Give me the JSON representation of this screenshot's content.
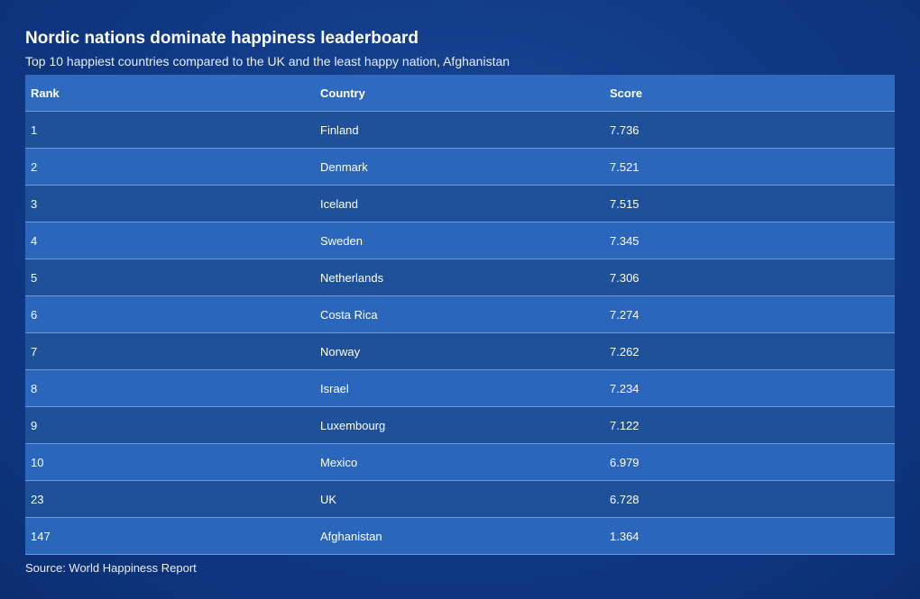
{
  "chart_data": {
    "type": "table",
    "title": "Nordic nations dominate happiness leaderboard",
    "subtitle": "Top 10 happiest countries compared to the UK and the least happy nation, Afghanistan",
    "columns": [
      "Rank",
      "Country",
      "Score"
    ],
    "rows": [
      [
        "1",
        "Finland",
        "7.736"
      ],
      [
        "2",
        "Denmark",
        "7.521"
      ],
      [
        "3",
        "Iceland",
        "7.515"
      ],
      [
        "4",
        "Sweden",
        "7.345"
      ],
      [
        "5",
        "Netherlands",
        "7.306"
      ],
      [
        "6",
        "Costa Rica",
        "7.274"
      ],
      [
        "7",
        "Norway",
        "7.262"
      ],
      [
        "8",
        "Israel",
        "7.234"
      ],
      [
        "9",
        "Luxembourg",
        "7.122"
      ],
      [
        "10",
        "Mexico",
        "6.979"
      ],
      [
        "23",
        "UK",
        "6.728"
      ],
      [
        "147",
        "Afghanistan",
        "1.364"
      ]
    ],
    "source": "Source: World Happiness Report"
  },
  "colors": {
    "background": "#0f3a86",
    "header_row": "#2e6ac0",
    "row_dark": "#1e5199",
    "row_light": "#2b66bd"
  }
}
